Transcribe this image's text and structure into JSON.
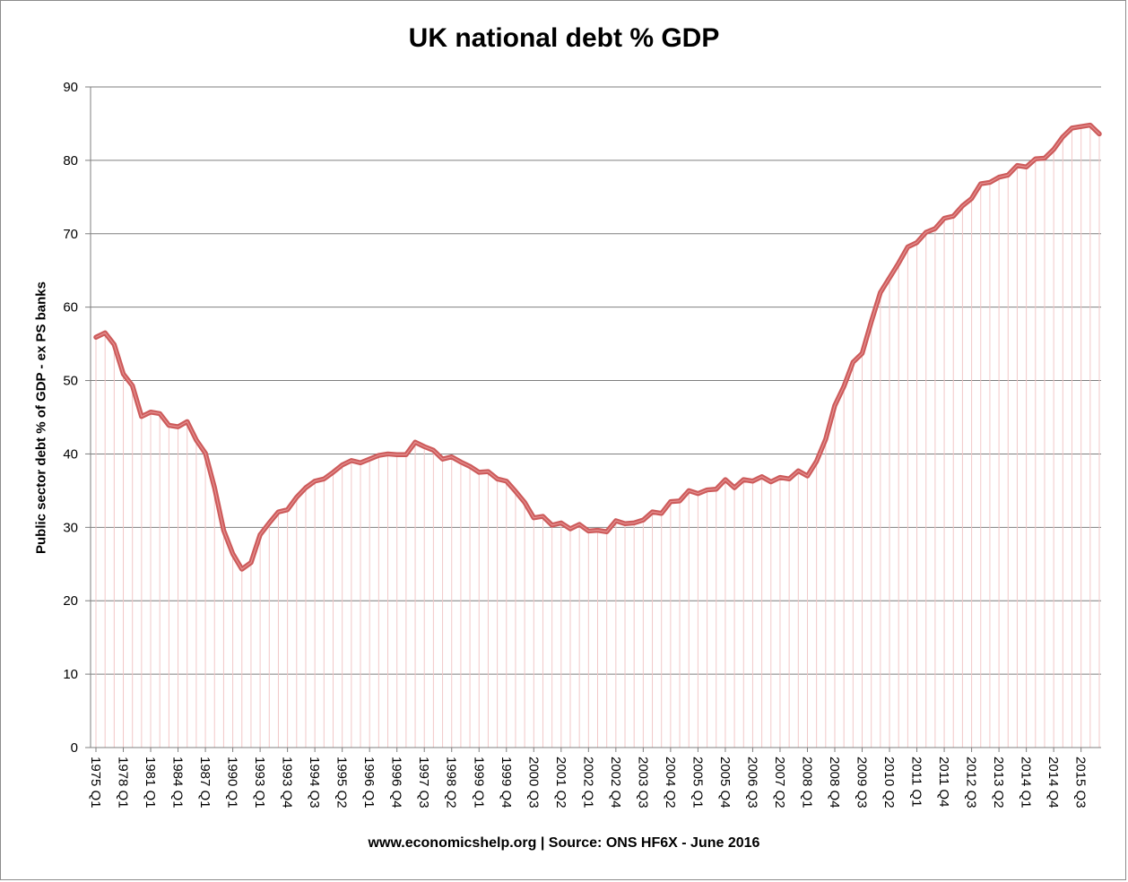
{
  "chart_data": {
    "type": "line",
    "title": "UK national debt % GDP",
    "ylabel": "Public sector debt % of GDP - ex PS banks",
    "xlabel": "www.economicshelp.org | Source: ONS HF6X - June 2016",
    "ylim": [
      0,
      90
    ],
    "yticks": [
      0,
      10,
      20,
      30,
      40,
      50,
      60,
      70,
      80,
      90
    ],
    "grid": true,
    "legend": "none",
    "colors": {
      "line": "#cd5b5b",
      "droplines": "#f2c8c8",
      "grid": "#7f7f7f"
    },
    "x_tick_labels": [
      "1975 Q1",
      "1978 Q1",
      "1981 Q1",
      "1984 Q1",
      "1987 Q1",
      "1990 Q1",
      "1993 Q1",
      "1993 Q4",
      "1994 Q3",
      "1995 Q2",
      "1996 Q1",
      "1996 Q4",
      "1997 Q3",
      "1998 Q2",
      "1999 Q1",
      "1999 Q4",
      "2000 Q3",
      "2001 Q2",
      "2002 Q1",
      "2002 Q4",
      "2003 Q3",
      "2004 Q2",
      "2005 Q1",
      "2005 Q4",
      "2006 Q3",
      "2007 Q2",
      "2008 Q1",
      "2008 Q4",
      "2009 Q3",
      "2010 Q2",
      "2011 Q1",
      "2011 Q4",
      "2012 Q3",
      "2013 Q2",
      "2014 Q1",
      "2014 Q4",
      "2015 Q3"
    ],
    "series": [
      {
        "values": [
          55.9,
          56.5,
          54.9,
          50.9,
          49.3,
          45.1,
          45.7,
          45.5,
          43.9,
          43.7,
          44.4,
          41.9,
          40.1,
          35.4,
          29.6,
          26.4,
          24.3,
          25.2,
          29.0,
          30.6,
          32.1,
          32.4,
          34.1,
          35.4,
          36.3,
          36.6,
          37.5,
          38.5,
          39.1,
          38.8,
          39.3,
          39.8,
          40.0,
          39.9,
          39.9,
          41.6,
          41.0,
          40.5,
          39.3,
          39.6,
          38.9,
          38.3,
          37.5,
          37.6,
          36.6,
          36.3,
          34.9,
          33.4,
          31.3,
          31.5,
          30.3,
          30.6,
          29.8,
          30.4,
          29.5,
          29.6,
          29.4,
          30.9,
          30.5,
          30.6,
          31.0,
          32.1,
          31.9,
          33.5,
          33.6,
          35.0,
          34.6,
          35.1,
          35.2,
          36.5,
          35.4,
          36.5,
          36.3,
          36.9,
          36.2,
          36.8,
          36.6,
          37.7,
          37.0,
          39.0,
          42.0,
          46.6,
          49.2,
          52.5,
          53.7,
          58.0,
          62.0,
          64.0,
          66.0,
          68.2,
          68.8,
          70.2,
          70.7,
          72.1,
          72.4,
          73.8,
          74.8,
          76.8,
          77.0,
          77.7,
          78.0,
          79.3,
          79.1,
          80.2,
          80.3,
          81.5,
          83.2,
          84.4,
          84.6,
          84.8,
          83.6
        ]
      }
    ]
  }
}
